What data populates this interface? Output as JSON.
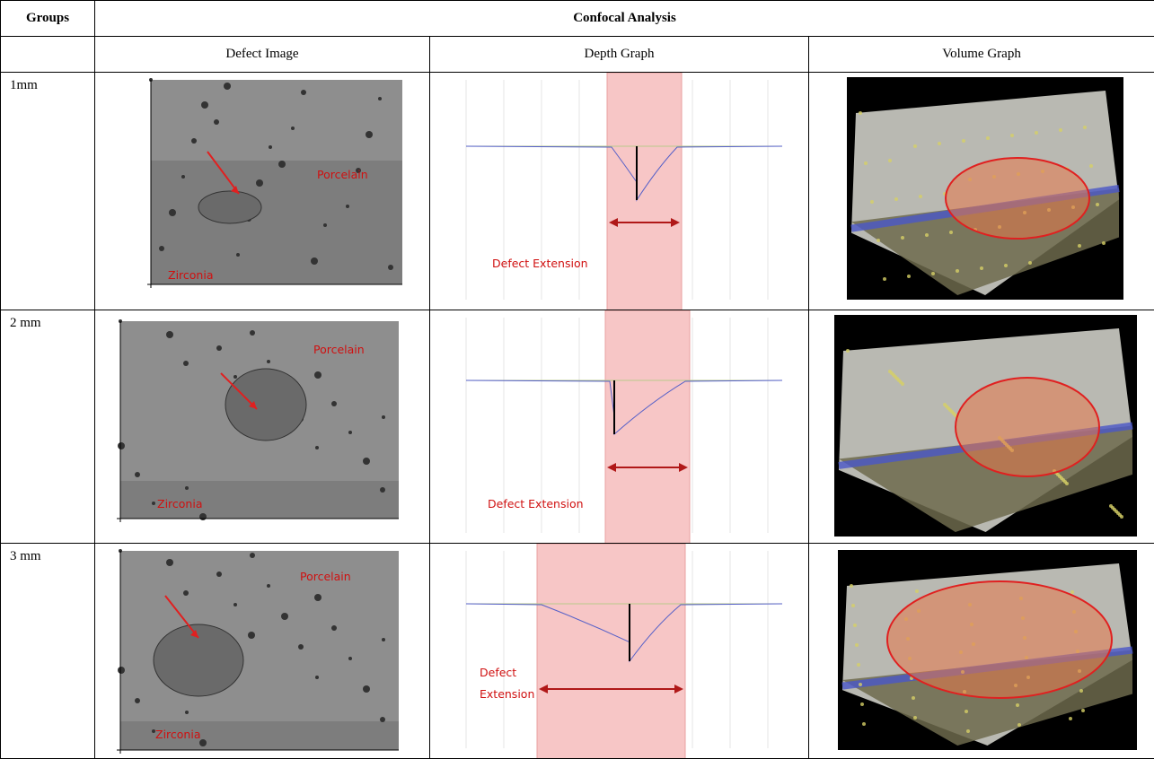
{
  "header": {
    "groups": "Groups",
    "title": "Confocal Analysis"
  },
  "columns": [
    "Defect Image",
    "Depth Graph",
    "Volume Graph"
  ],
  "rows": [
    {
      "group": "1mm",
      "porcelain": "Porcelain",
      "zirconia": "Zirconia",
      "depth_label": "Defect Extension"
    },
    {
      "group": "2 mm",
      "porcelain": "Porcelain",
      "zirconia": "Zirconia",
      "depth_label": "Defect Extension"
    },
    {
      "group": "3 mm",
      "porcelain": "Porcelain",
      "zirconia": "Zirconia",
      "depth_label": "Defect Extension"
    }
  ]
}
